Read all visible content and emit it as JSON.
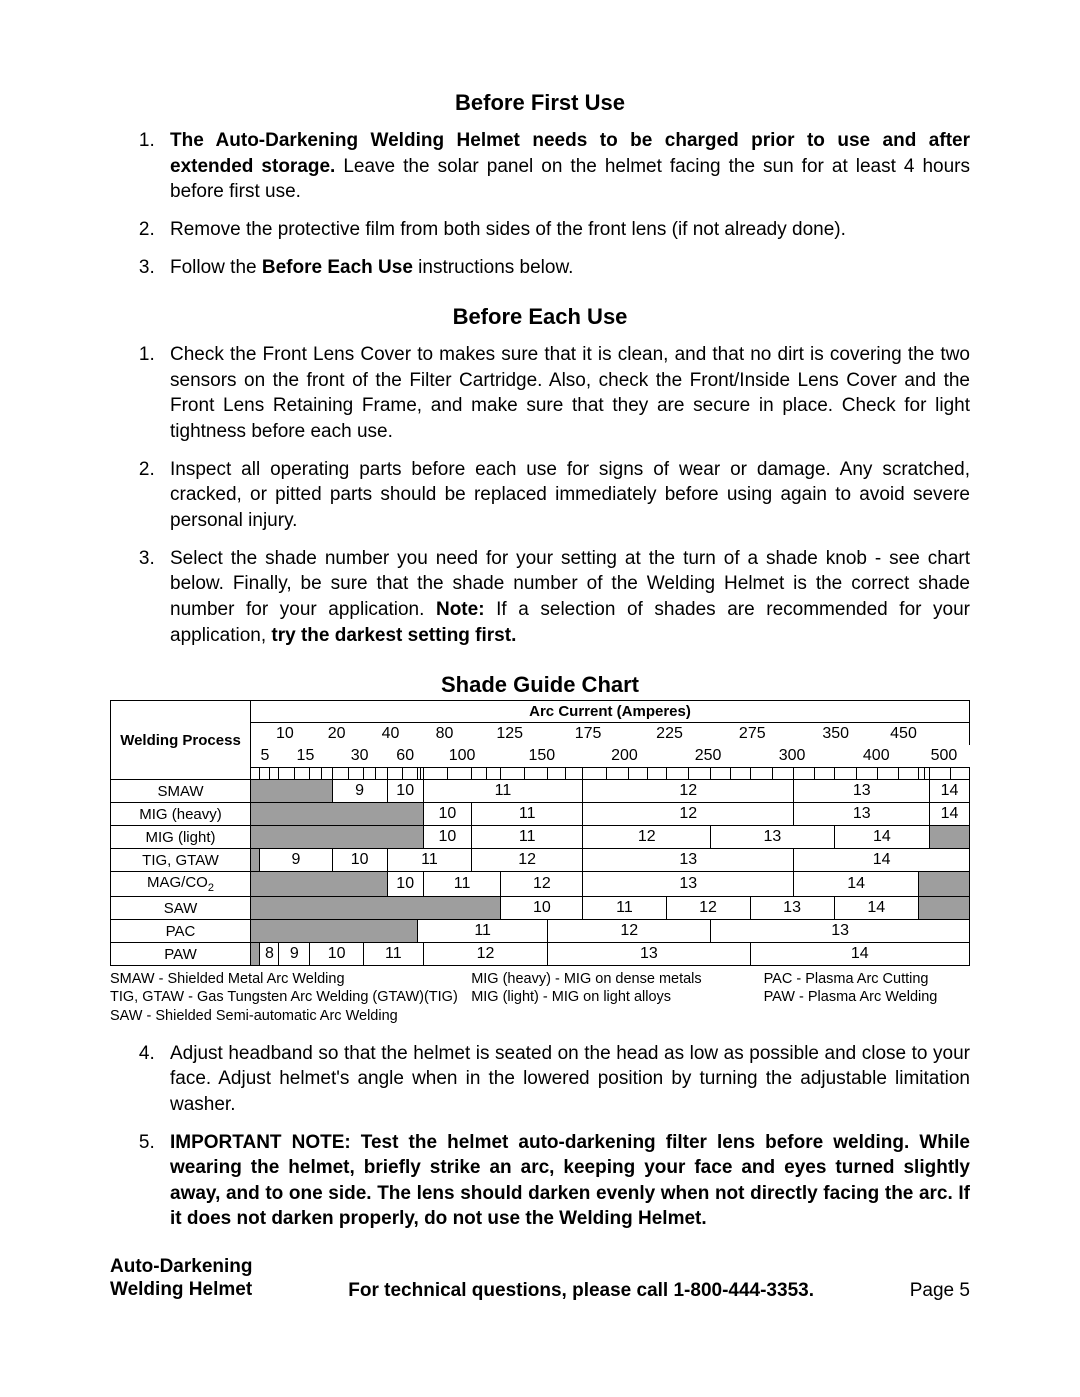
{
  "sections": {
    "before_first_use": {
      "title": "Before First Use",
      "items": [
        "<span class='b'>The Auto-Darkening Welding Helmet needs to be charged prior to use and after extended storage.</span>  Leave the solar panel on the helmet facing the sun for at least 4 hours before first use.",
        "Remove the protective film from both sides of the front lens (if not already done).",
        "Follow the <span class='b'>Before Each Use</span> instructions below."
      ]
    },
    "before_each_use": {
      "title": "Before Each Use",
      "items": [
        "Check the Front Lens Cover to makes sure that it is clean, and that no dirt is covering the two sensors on the front of the Filter Cartridge.  Also, check the Front/Inside Lens Cover and the Front Lens Retaining Frame, and make sure that they are secure in place.  Check for light tightness before each use.",
        "Inspect all operating parts before each use for signs of wear or damage.  Any scratched, cracked, or pitted parts should be replaced immediately before using again to avoid severe personal injury.",
        "Select the shade number you need for your setting at the turn of a shade knob - see chart below.  Finally, be sure that the shade number of the Welding Helmet is the correct shade number for your application.  <span class='b'>Note:</span>  If a selection of shades are recommended for your application, <span class='b'>try the darkest setting first.</span>"
      ]
    },
    "after_chart": {
      "start": 4,
      "items": [
        " Adjust headband so that the helmet is seated on the head as low as possible and close to your face.  Adjust helmet's angle when in the lowered position by turning the adjustable limitation washer.",
        "<span class='b'>IMPORTANT NOTE:  Test the helmet auto-darkening filter lens before welding.  While wearing the helmet, briefly strike an arc, keeping your face and eyes turned slightly away, and to one side.  The lens should darken evenly when not directly facing the arc.  If it does not darken properly, do not use the Welding Helmet.</span>"
      ]
    }
  },
  "chart": {
    "title": "Shade Guide Chart",
    "header_process": "Welding Process",
    "header_amperes": "Arc Current (Amperes)",
    "top_ticks": [
      "10",
      "20",
      "40",
      "80",
      "125",
      "175",
      "225",
      "275",
      "350",
      "450"
    ],
    "bot_ticks": [
      "5",
      "15",
      "30",
      "60",
      "100",
      "150",
      "200",
      "250",
      "300",
      "400",
      "500"
    ],
    "total_cols": 22,
    "rows": [
      {
        "proc": "SMAW",
        "cells": [
          {
            "span": 4,
            "s": true
          },
          {
            "span": 2,
            "v": "9"
          },
          {
            "span": 2,
            "v": "10"
          },
          {
            "span": 4,
            "v": "11"
          },
          {
            "span": 5,
            "v": "12"
          },
          {
            "span": 4,
            "v": "13"
          },
          {
            "span": 1,
            "v": "14"
          }
        ]
      },
      {
        "proc": "MIG (heavy)",
        "cells": [
          {
            "span": 8,
            "s": true
          },
          {
            "span": 1,
            "v": "10"
          },
          {
            "span": 3,
            "v": "11"
          },
          {
            "span": 5,
            "v": "12"
          },
          {
            "span": 4,
            "v": "13"
          },
          {
            "span": 1,
            "v": "14"
          }
        ]
      },
      {
        "proc": "MIG (light)",
        "cells": [
          {
            "span": 8,
            "s": true
          },
          {
            "span": 1,
            "v": "10"
          },
          {
            "span": 3,
            "v": "11"
          },
          {
            "span": 3,
            "v": "12"
          },
          {
            "span": 3,
            "v": "13"
          },
          {
            "span": 3,
            "v": "14"
          },
          {
            "span": 1,
            "s": true
          }
        ]
      },
      {
        "proc": "TIG, GTAW",
        "cells": [
          {
            "span": 1,
            "s": true
          },
          {
            "span": 3,
            "v": "9"
          },
          {
            "span": 2,
            "v": "10"
          },
          {
            "span": 3,
            "v": "11"
          },
          {
            "span": 3,
            "v": "12"
          },
          {
            "span": 5,
            "v": "13"
          },
          {
            "span": 5,
            "v": "14"
          }
        ]
      },
      {
        "proc": "MAG/CO",
        "sub": "2",
        "cells": [
          {
            "span": 6,
            "s": true
          },
          {
            "span": 2,
            "v": "10"
          },
          {
            "span": 2,
            "v": "11"
          },
          {
            "span": 2,
            "v": "12"
          },
          {
            "span": 5,
            "v": "13"
          },
          {
            "span": 3,
            "v": "14"
          },
          {
            "span": 2,
            "s": true
          }
        ]
      },
      {
        "proc": "SAW",
        "cells": [
          {
            "span": 10,
            "s": true
          },
          {
            "span": 2,
            "v": "10"
          },
          {
            "span": 2,
            "v": "11"
          },
          {
            "span": 2,
            "v": "12"
          },
          {
            "span": 2,
            "v": "13"
          },
          {
            "span": 2,
            "v": "14"
          },
          {
            "span": 2,
            "s": true
          }
        ]
      },
      {
        "proc": "PAC",
        "cells": [
          {
            "span": 7,
            "s": true
          },
          {
            "span": 4,
            "v": "11"
          },
          {
            "span": 4,
            "v": "12"
          },
          {
            "span": 7,
            "v": "13"
          }
        ]
      },
      {
        "proc": "PAW",
        "cells": [
          {
            "span": 1,
            "s": true
          },
          {
            "span": 1,
            "v": "8"
          },
          {
            "span": 1,
            "v": "9"
          },
          {
            "span": 2,
            "v": "10"
          },
          {
            "span": 3,
            "v": "11"
          },
          {
            "span": 3,
            "v": "12"
          },
          {
            "span": 5,
            "v": "13"
          },
          {
            "span": 6,
            "v": "14"
          }
        ]
      }
    ]
  },
  "legend": {
    "c1": [
      "SMAW - Shielded Metal Arc Welding",
      "TIG, GTAW - Gas Tungsten Arc Welding (GTAW)(TIG)",
      "SAW - Shielded Semi-automatic Arc Welding"
    ],
    "c2": [
      "MIG (heavy) - MIG on dense metals",
      "MIG (light) - MIG on light alloys"
    ],
    "c3": [
      "PAC - Plasma Arc Cutting",
      "PAW - Plasma Arc Welding"
    ]
  },
  "footer": {
    "left1": "Auto-Darkening",
    "left2": "Welding Helmet",
    "mid": "For technical questions, please call 1-800-444-3353.",
    "right": "Page 5"
  }
}
